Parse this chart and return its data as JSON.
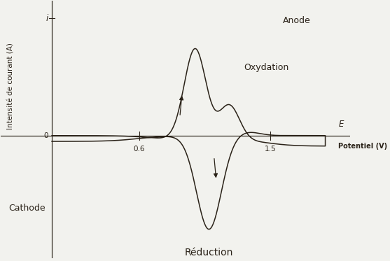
{
  "xlabel_italic": "E",
  "xlabel_bold": "Potentiel (V)",
  "ylabel": "Intensite de courant (A)",
  "xlim": [
    -0.35,
    2.05
  ],
  "ylim": [
    -1.05,
    1.15
  ],
  "tick_06": 0.6,
  "tick_15": 1.5,
  "tick_i": 1.0,
  "label_anode": "Anode",
  "label_cathode": "Cathode",
  "label_oxydation": "Oxydation",
  "label_reduction": "Réduction",
  "background_color": "#f2f2ee",
  "line_color": "#2a2218"
}
